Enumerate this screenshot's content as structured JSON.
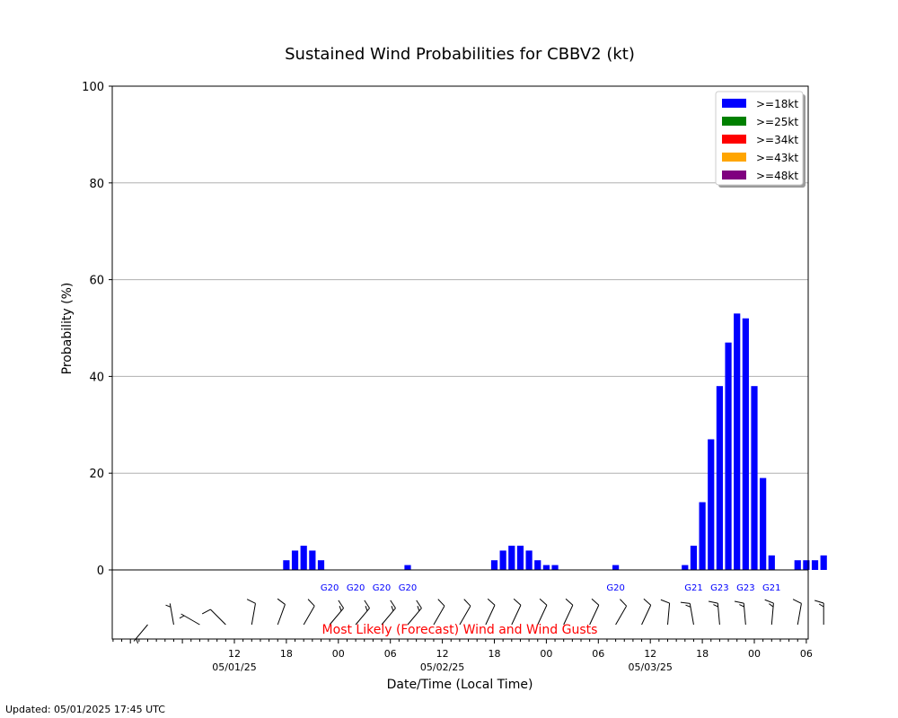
{
  "chart_data": {
    "type": "bar",
    "title": "Sustained Wind Probabilities for CBBV2 (kt)",
    "xlabel": "Date/Time (Local Time)",
    "ylabel": "Probability (%)",
    "ylim": [
      -14,
      100
    ],
    "yticks": [
      0,
      20,
      40,
      60,
      80,
      100
    ],
    "grid": true,
    "legend_position": "top-right",
    "legend": [
      {
        "label": ">=18kt",
        "color": "#0000ff"
      },
      {
        "label": ">=25kt",
        "color": "#008000"
      },
      {
        "label": ">=34kt",
        "color": "#ff0000"
      },
      {
        "label": ">=43kt",
        "color": "#ffa500"
      },
      {
        "label": ">=48kt",
        "color": "#800080"
      }
    ],
    "x_hour_ticks": [
      {
        "hour": 12,
        "label": "12"
      },
      {
        "hour": 18,
        "label": "18"
      },
      {
        "hour": 24,
        "label": "00"
      },
      {
        "hour": 30,
        "label": "06"
      },
      {
        "hour": 36,
        "label": "12"
      },
      {
        "hour": 42,
        "label": "18"
      },
      {
        "hour": 48,
        "label": "00"
      },
      {
        "hour": 54,
        "label": "06"
      },
      {
        "hour": 60,
        "label": "12"
      },
      {
        "hour": 66,
        "label": "18"
      },
      {
        "hour": 72,
        "label": "00"
      },
      {
        "hour": 78,
        "label": "06"
      }
    ],
    "x_date_labels": [
      {
        "hour": 12,
        "label": "05/01/25"
      },
      {
        "hour": 36,
        "label": "05/02/25"
      },
      {
        "hour": 60,
        "label": "05/03/25"
      }
    ],
    "series": [
      {
        "name": ">=18kt",
        "color": "#0000ff",
        "points": [
          {
            "hour": 18,
            "value": 2
          },
          {
            "hour": 19,
            "value": 4
          },
          {
            "hour": 20,
            "value": 5
          },
          {
            "hour": 21,
            "value": 4
          },
          {
            "hour": 22,
            "value": 2
          },
          {
            "hour": 28,
            "value": 0
          },
          {
            "hour": 31,
            "value": 0
          },
          {
            "hour": 32,
            "value": 1
          },
          {
            "hour": 42,
            "value": 2
          },
          {
            "hour": 43,
            "value": 4
          },
          {
            "hour": 44,
            "value": 5
          },
          {
            "hour": 45,
            "value": 5
          },
          {
            "hour": 46,
            "value": 4
          },
          {
            "hour": 47,
            "value": 2
          },
          {
            "hour": 48,
            "value": 1
          },
          {
            "hour": 49,
            "value": 1
          },
          {
            "hour": 56,
            "value": 1
          },
          {
            "hour": 64,
            "value": 1
          },
          {
            "hour": 65,
            "value": 5
          },
          {
            "hour": 66,
            "value": 14
          },
          {
            "hour": 67,
            "value": 27
          },
          {
            "hour": 68,
            "value": 38
          },
          {
            "hour": 69,
            "value": 47
          },
          {
            "hour": 70,
            "value": 53
          },
          {
            "hour": 71,
            "value": 52
          },
          {
            "hour": 72,
            "value": 38
          },
          {
            "hour": 73,
            "value": 19
          },
          {
            "hour": 74,
            "value": 3
          },
          {
            "hour": 77,
            "value": 2
          },
          {
            "hour": 78,
            "value": 2
          },
          {
            "hour": 79,
            "value": 2
          },
          {
            "hour": 80,
            "value": 3
          }
        ]
      }
    ],
    "gusts": [
      {
        "hour": 23,
        "label": "G20"
      },
      {
        "hour": 26,
        "label": "G20"
      },
      {
        "hour": 29,
        "label": "G20"
      },
      {
        "hour": 32,
        "label": "G20"
      },
      {
        "hour": 56,
        "label": "G20"
      },
      {
        "hour": 65,
        "label": "G21"
      },
      {
        "hour": 68,
        "label": "G23"
      },
      {
        "hour": 71,
        "label": "G23"
      },
      {
        "hour": 74,
        "label": "G21"
      }
    ],
    "wind_barbs": [
      {
        "hour": 2,
        "dir_deg": 220,
        "speed_kt": 5
      },
      {
        "hour": 5,
        "dir_deg": 350,
        "speed_kt": 5
      },
      {
        "hour": 8,
        "dir_deg": 300,
        "speed_kt": 5
      },
      {
        "hour": 11,
        "dir_deg": 315,
        "speed_kt": 10
      },
      {
        "hour": 14,
        "dir_deg": 10,
        "speed_kt": 10
      },
      {
        "hour": 17,
        "dir_deg": 20,
        "speed_kt": 10
      },
      {
        "hour": 20,
        "dir_deg": 30,
        "speed_kt": 10
      },
      {
        "hour": 23,
        "dir_deg": 40,
        "speed_kt": 15
      },
      {
        "hour": 26,
        "dir_deg": 40,
        "speed_kt": 15
      },
      {
        "hour": 29,
        "dir_deg": 40,
        "speed_kt": 15
      },
      {
        "hour": 32,
        "dir_deg": 40,
        "speed_kt": 15
      },
      {
        "hour": 35,
        "dir_deg": 30,
        "speed_kt": 10
      },
      {
        "hour": 38,
        "dir_deg": 30,
        "speed_kt": 10
      },
      {
        "hour": 41,
        "dir_deg": 25,
        "speed_kt": 10
      },
      {
        "hour": 44,
        "dir_deg": 25,
        "speed_kt": 10
      },
      {
        "hour": 47,
        "dir_deg": 25,
        "speed_kt": 10
      },
      {
        "hour": 50,
        "dir_deg": 25,
        "speed_kt": 10
      },
      {
        "hour": 53,
        "dir_deg": 25,
        "speed_kt": 10
      },
      {
        "hour": 56,
        "dir_deg": 30,
        "speed_kt": 10
      },
      {
        "hour": 59,
        "dir_deg": 25,
        "speed_kt": 10
      },
      {
        "hour": 62,
        "dir_deg": 5,
        "speed_kt": 10
      },
      {
        "hour": 65,
        "dir_deg": 350,
        "speed_kt": 15
      },
      {
        "hour": 68,
        "dir_deg": 355,
        "speed_kt": 15
      },
      {
        "hour": 71,
        "dir_deg": 355,
        "speed_kt": 15
      },
      {
        "hour": 74,
        "dir_deg": 5,
        "speed_kt": 15
      },
      {
        "hour": 77,
        "dir_deg": 10,
        "speed_kt": 10
      },
      {
        "hour": 80,
        "dir_deg": 0,
        "speed_kt": 15
      }
    ],
    "forecast_label": "Most Likely (Forecast) Wind and Wind Gusts",
    "updated": "Updated: 05/01/2025 17:45 UTC"
  }
}
